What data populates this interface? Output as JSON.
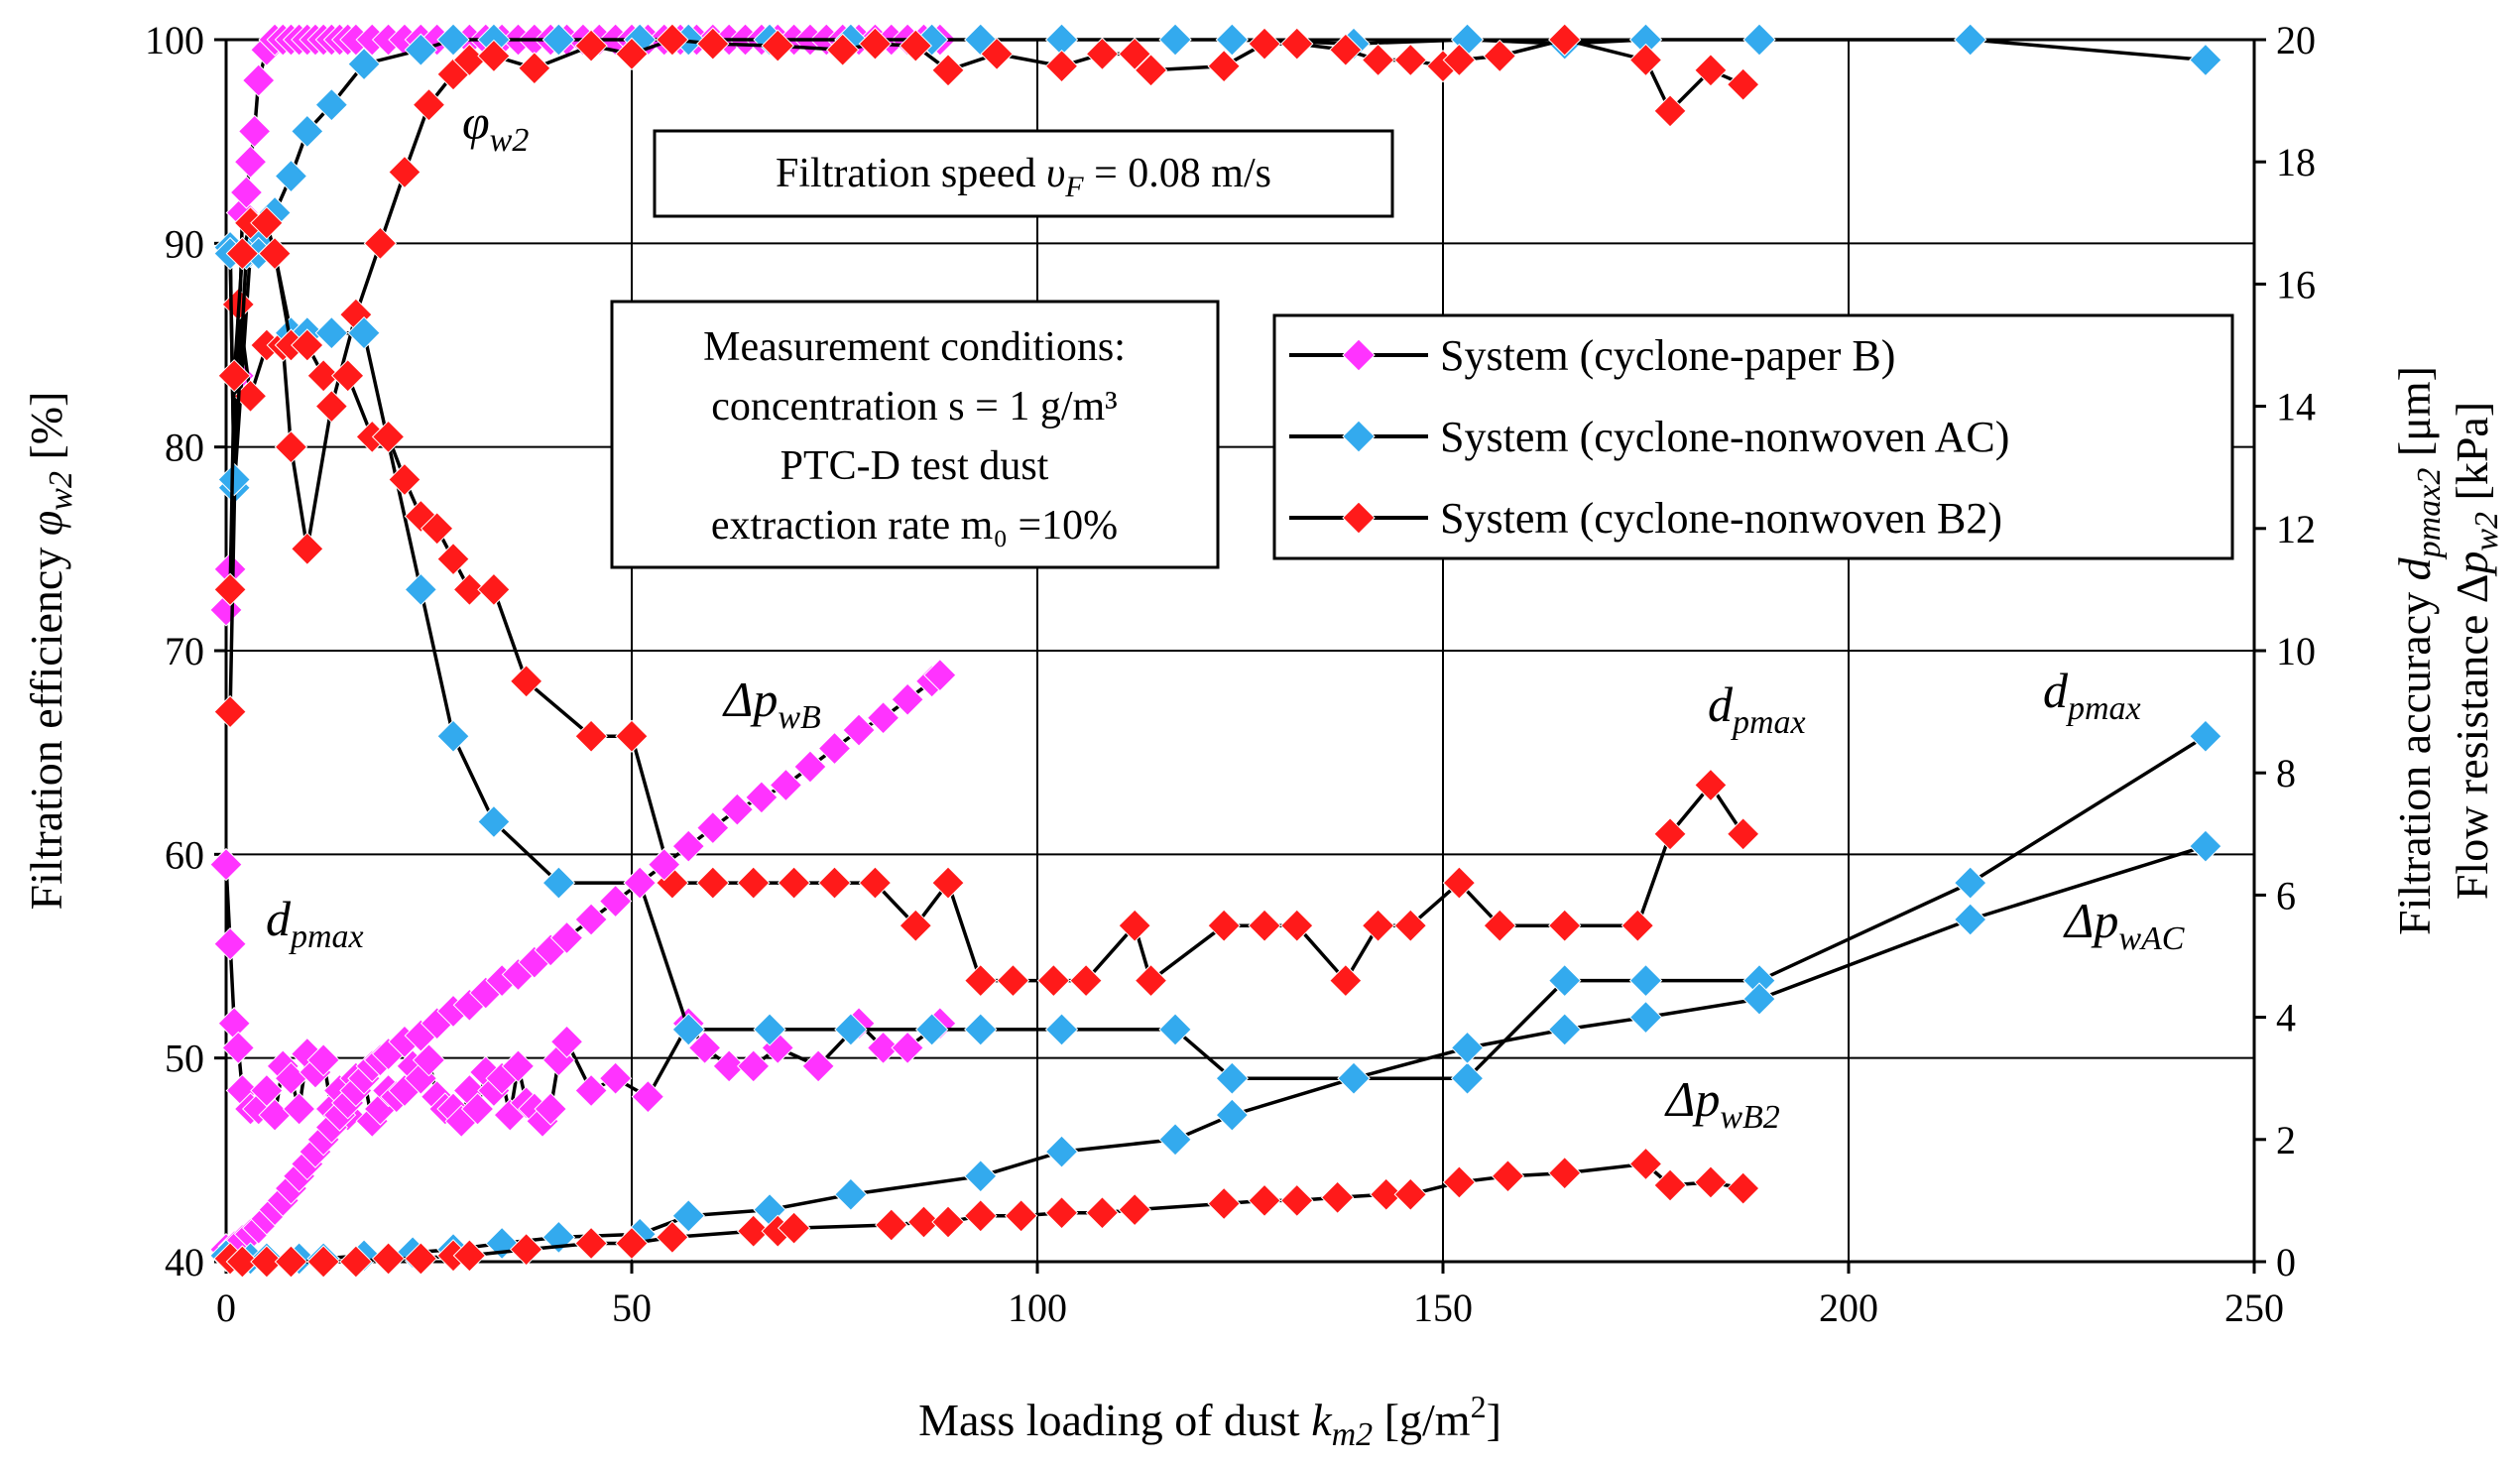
{
  "chart_data": {
    "type": "line",
    "x_axis": {
      "title": "Mass loading of dust ",
      "title_var": "k",
      "title_sub": "m2",
      "title_unit": " [g/m",
      "title_sup": "2",
      "title_end": "]",
      "range": [
        0,
        250
      ],
      "ticks": [
        "0",
        "50",
        "100",
        "150",
        "200",
        "250"
      ]
    },
    "y_axis_left": {
      "title": "Filtration efficiency ",
      "title_var": "φ",
      "title_sub": "w2",
      "title_unit": " [%]",
      "range": [
        40,
        100
      ],
      "ticks": [
        "40",
        "50",
        "60",
        "70",
        "80",
        "90",
        "100"
      ]
    },
    "y_axis_right": {
      "title1": "Filtration accuracy ",
      "title1_var": "d",
      "title1_sub": "pmax2",
      "title1_unit": " [μm]",
      "title2": "Flow resistance Δ",
      "title2_var": "p",
      "title2_sub": "w2",
      "title2_unit": " [kPa]",
      "range": [
        0,
        20
      ],
      "ticks": [
        "0",
        "2",
        "4",
        "6",
        "8",
        "10",
        "12",
        "14",
        "16",
        "18",
        "20"
      ]
    },
    "legend": {
      "placement": "top-right",
      "items": [
        {
          "label": "System (cyclone-paper B)",
          "color": "#ff33ff"
        },
        {
          "label": "System (cyclone-nonwoven AC)",
          "color": "#33aaee"
        },
        {
          "label": "System (cyclone-nonwoven B2)",
          "color": "#ff1a1a"
        }
      ]
    },
    "notes": {
      "speed_label": "Filtration speed ",
      "speed_var": "υ",
      "speed_sub": "F",
      "speed_value": " = 0.08 m/s",
      "conditions": [
        "Measurement conditions:",
        "concentration s = 1 g/m³",
        "PTC-D test dust",
        "extraction rate m₀ =10%"
      ]
    },
    "annotations": [
      {
        "main": "φ",
        "sub": "w2"
      },
      {
        "main": "Δp",
        "sub": "wB"
      },
      {
        "main": "d",
        "sub": "pmax"
      },
      {
        "main": "d",
        "sub": "pmax"
      },
      {
        "main": "d",
        "sub": "pmax"
      },
      {
        "main": "Δp",
        "sub": "wAC"
      },
      {
        "main": "Δp",
        "sub": "wB2"
      }
    ],
    "series": [
      {
        "name": "Paper B – filtration efficiency",
        "color": "#ff33ff",
        "axis": "left",
        "x": [
          0,
          0.5,
          1,
          1.5,
          2,
          2.5,
          3,
          3.5,
          4,
          5,
          6,
          7,
          8,
          9,
          10,
          11,
          12,
          13,
          14,
          15,
          16,
          18,
          20,
          22,
          24,
          26,
          28,
          30,
          32,
          34,
          36,
          38,
          40,
          42,
          44,
          46,
          48,
          50,
          52,
          54,
          56,
          58,
          60,
          62,
          64,
          66,
          68,
          70,
          72,
          74,
          76,
          78,
          80,
          82,
          84,
          86,
          88
        ],
        "y": [
          72,
          74,
          78,
          83.5,
          91.5,
          92.5,
          94,
          95.5,
          98,
          99.5,
          100,
          100,
          100,
          100,
          100,
          100,
          100,
          100,
          100,
          100,
          100,
          100,
          100,
          100,
          100,
          100,
          100,
          100,
          100,
          100,
          100,
          100,
          100,
          100,
          100,
          100,
          100,
          100,
          100,
          100,
          100,
          100,
          100,
          100,
          100,
          100,
          100,
          100,
          100,
          100,
          100,
          100,
          100,
          100,
          100,
          100,
          100
        ]
      },
      {
        "name": "Nonwoven AC – filtration efficiency",
        "color": "#33aaee",
        "axis": "left",
        "x": [
          0.5,
          1,
          3,
          4,
          6,
          8,
          10,
          13,
          17,
          24,
          28,
          33,
          41,
          51,
          57,
          67,
          77,
          87,
          93,
          103,
          117,
          124,
          139,
          153,
          165,
          175,
          189,
          215,
          244
        ],
        "y": [
          89.8,
          78,
          89.6,
          90.2,
          91.5,
          93.3,
          95.5,
          96.8,
          98.8,
          99.5,
          100,
          100,
          100,
          100,
          100,
          100,
          100,
          100,
          100,
          100,
          100,
          100,
          99.8,
          100,
          99.8,
          100,
          100,
          100,
          99
        ]
      },
      {
        "name": "Nonwoven B2 – filtration efficiency",
        "color": "#ff1a1a",
        "axis": "left",
        "x": [
          0.5,
          1.5,
          3,
          5,
          7,
          8,
          10,
          13,
          16,
          19,
          22,
          25,
          28,
          30,
          33,
          38,
          45,
          50,
          55,
          60,
          68,
          76,
          80,
          85,
          89,
          95,
          103,
          108,
          112,
          114,
          123,
          128,
          132,
          138,
          142,
          146,
          150,
          152,
          157,
          165,
          175,
          178,
          183,
          187
        ],
        "y": [
          67,
          87,
          82.5,
          85,
          85,
          80,
          75,
          82,
          86.5,
          90,
          93.5,
          96.8,
          98.3,
          99,
          99.2,
          98.6,
          99.7,
          99.3,
          100,
          99.8,
          99.7,
          99.5,
          99.8,
          99.7,
          98.5,
          99.3,
          98.7,
          99.3,
          99.3,
          98.5,
          98.7,
          99.8,
          99.8,
          99.5,
          99,
          99,
          98.7,
          99,
          99.2,
          100,
          99,
          96.5,
          98.5,
          97.8
        ]
      },
      {
        "name": "Paper B – dpmax",
        "color": "#ff33ff",
        "axis": "right",
        "x": [
          0,
          0.5,
          1,
          1.5,
          2,
          3,
          4,
          5,
          6,
          7,
          8,
          9,
          10,
          11,
          12,
          13,
          14,
          15,
          16,
          17,
          18,
          19,
          20,
          21,
          22,
          23,
          24,
          25,
          26,
          27,
          28,
          29,
          30,
          31,
          32,
          33,
          34,
          35,
          36,
          37,
          38,
          39,
          40,
          41,
          42,
          45,
          48,
          52,
          57,
          59,
          62,
          65,
          68,
          73,
          78,
          81,
          84,
          88
        ],
        "y": [
          6.5,
          5.2,
          3.9,
          3.5,
          2.8,
          2.5,
          2.5,
          2.8,
          2.4,
          3.2,
          3.0,
          2.5,
          3.4,
          3.1,
          3.3,
          2.5,
          2.8,
          2.4,
          3.0,
          3.0,
          2.3,
          2.5,
          2.8,
          2.7,
          2.8,
          3.2,
          3.0,
          3.3,
          2.7,
          2.5,
          2.5,
          2.3,
          2.8,
          2.5,
          3.1,
          2.8,
          3.0,
          2.4,
          3.2,
          2.6,
          2.5,
          2.3,
          2.5,
          3.3,
          3.6,
          2.8,
          3.0,
          2.7,
          3.9,
          3.5,
          3.2,
          3.2,
          3.5,
          3.2,
          3.9,
          3.5,
          3.5,
          3.9
        ]
      },
      {
        "name": "Nonwoven AC – dpmax",
        "color": "#33aaee",
        "axis": "right",
        "x": [
          0.5,
          1,
          2.5,
          4,
          6,
          8,
          10,
          13,
          17,
          24,
          28,
          33,
          41,
          51,
          57,
          67,
          77,
          87,
          93,
          103,
          117,
          124,
          139,
          153,
          165,
          175,
          189,
          215,
          244
        ],
        "y": [
          16.5,
          12.8,
          16.5,
          16.5,
          16.5,
          15.2,
          15.2,
          15.2,
          15.2,
          11.0,
          8.6,
          7.2,
          6.2,
          6.2,
          3.8,
          3.8,
          3.8,
          3.8,
          3.8,
          3.8,
          3.8,
          3.0,
          3.0,
          3.0,
          4.6,
          4.6,
          4.6,
          6.2,
          8.6
        ]
      },
      {
        "name": "Nonwoven B2 – dpmax",
        "color": "#ff1a1a",
        "axis": "right",
        "x": [
          0.5,
          1,
          2,
          3,
          5,
          6,
          8,
          10,
          12,
          15,
          18,
          20,
          22,
          24,
          26,
          28,
          30,
          33,
          37,
          45,
          50,
          55,
          60,
          65,
          70,
          75,
          80,
          85,
          89,
          93,
          97,
          102,
          106,
          112,
          114,
          123,
          128,
          132,
          138,
          142,
          146,
          152,
          157,
          165,
          174,
          178,
          183,
          187
        ],
        "y": [
          11,
          14.5,
          16.5,
          17,
          17,
          16.5,
          15,
          15,
          14.5,
          14.5,
          13.5,
          13.5,
          12.8,
          12.2,
          12.0,
          11.5,
          11.0,
          11.0,
          9.5,
          8.6,
          8.6,
          6.2,
          6.2,
          6.2,
          6.2,
          6.2,
          6.2,
          5.5,
          6.2,
          4.6,
          4.6,
          4.6,
          4.6,
          5.5,
          4.6,
          5.5,
          5.5,
          5.5,
          4.6,
          5.5,
          5.5,
          6.2,
          5.5,
          5.5,
          5.5,
          7.0,
          7.8,
          7.0
        ]
      },
      {
        "name": "Paper B – flow resistance",
        "color": "#ff33ff",
        "axis": "right",
        "x": [
          0,
          1,
          2,
          3,
          4,
          5,
          6,
          7,
          8,
          9,
          10,
          11,
          12,
          13,
          14,
          15,
          16,
          17,
          18,
          19,
          20,
          22,
          24,
          26,
          28,
          30,
          32,
          34,
          36,
          38,
          40,
          42,
          45,
          48,
          51,
          54,
          57,
          60,
          63,
          66,
          69,
          72,
          75,
          78,
          81,
          84,
          87,
          88
        ],
        "y": [
          0.2,
          0.25,
          0.35,
          0.45,
          0.55,
          0.7,
          0.85,
          1.0,
          1.2,
          1.4,
          1.6,
          1.8,
          2.0,
          2.2,
          2.4,
          2.6,
          2.8,
          3.0,
          3.2,
          3.3,
          3.4,
          3.6,
          3.7,
          3.9,
          4.1,
          4.2,
          4.4,
          4.6,
          4.7,
          4.9,
          5.1,
          5.3,
          5.6,
          5.9,
          6.2,
          6.5,
          6.8,
          7.1,
          7.4,
          7.6,
          7.8,
          8.1,
          8.4,
          8.7,
          8.9,
          9.2,
          9.5,
          9.6
        ]
      },
      {
        "name": "Nonwoven AC – flow resistance",
        "color": "#33aaee",
        "axis": "right",
        "x": [
          0,
          3,
          5,
          9,
          12,
          17,
          23,
          28,
          34,
          41,
          51,
          57,
          67,
          77,
          93,
          103,
          117,
          124,
          139,
          153,
          165,
          175,
          189,
          215,
          244
        ],
        "y": [
          0.1,
          0.05,
          0.05,
          0.05,
          0.05,
          0.1,
          0.15,
          0.2,
          0.3,
          0.4,
          0.45,
          0.75,
          0.85,
          1.1,
          1.4,
          1.8,
          2.0,
          2.4,
          3.0,
          3.5,
          3.8,
          4.0,
          4.3,
          5.6,
          6.8
        ]
      },
      {
        "name": "Nonwoven B2 – flow resistance",
        "color": "#ff1a1a",
        "axis": "right",
        "x": [
          0.5,
          2,
          5,
          8,
          12,
          16,
          20,
          24,
          28,
          30,
          37,
          45,
          50,
          55,
          65,
          68,
          70,
          82,
          86,
          89,
          93,
          98,
          103,
          108,
          112,
          123,
          128,
          132,
          137,
          143,
          146,
          152,
          158,
          165,
          175,
          178,
          183,
          187
        ],
        "y": [
          0.05,
          0.0,
          0.0,
          0.0,
          0.0,
          0.0,
          0.05,
          0.05,
          0.1,
          0.1,
          0.2,
          0.3,
          0.3,
          0.4,
          0.5,
          0.5,
          0.55,
          0.6,
          0.65,
          0.65,
          0.75,
          0.75,
          0.8,
          0.8,
          0.85,
          0.95,
          1.0,
          1.0,
          1.05,
          1.1,
          1.1,
          1.3,
          1.4,
          1.45,
          1.6,
          1.25,
          1.3,
          1.2
        ]
      }
    ]
  }
}
